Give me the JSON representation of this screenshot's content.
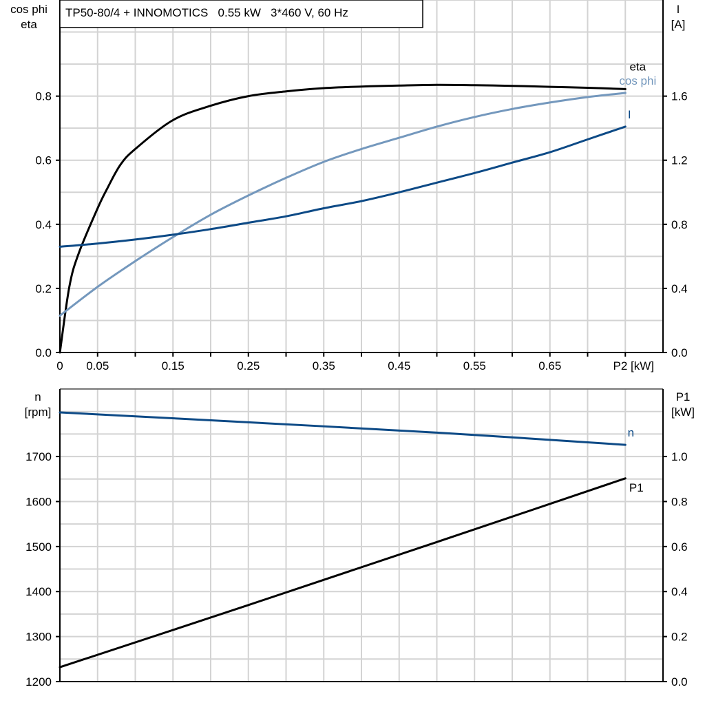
{
  "chart_data": [
    {
      "type": "line",
      "title": "TP50-80/4 + INNOMOTICS   0.55 kW   3*460 V, 60 Hz",
      "xlabel": "P2 [kW]",
      "ylabel_left": [
        "cos phi",
        "eta"
      ],
      "ylabel_right": [
        "I",
        "[A]"
      ],
      "xlim": [
        0,
        0.8
      ],
      "ylim_left": [
        0,
        1.1
      ],
      "ylim_right": [
        0,
        2.2
      ],
      "x_tick_labels": [
        "0",
        "0.05",
        "0.15",
        "0.25",
        "0.35",
        "0.45",
        "0.55",
        "0.65"
      ],
      "x_ticks": [
        0,
        0.05,
        0.15,
        0.25,
        0.35,
        0.45,
        0.55,
        0.65
      ],
      "y_left_ticks": [
        "0.0",
        "0.2",
        "0.4",
        "0.6",
        "0.8"
      ],
      "y_right_ticks": [
        "0.0",
        "0.4",
        "0.8",
        "1.2",
        "1.6"
      ],
      "grid": true,
      "series": [
        {
          "name": "eta",
          "axis": "left",
          "color": "#000000",
          "x": [
            0,
            0.0125,
            0.025,
            0.05,
            0.0625,
            0.08,
            0.1,
            0.15,
            0.2,
            0.25,
            0.3,
            0.35,
            0.4,
            0.45,
            0.5,
            0.55,
            0.6,
            0.65,
            0.7,
            0.75
          ],
          "y": [
            0,
            0.205,
            0.31,
            0.45,
            0.51,
            0.585,
            0.635,
            0.725,
            0.77,
            0.8,
            0.815,
            0.825,
            0.83,
            0.833,
            0.835,
            0.834,
            0.832,
            0.829,
            0.826,
            0.822
          ]
        },
        {
          "name": "cos phi",
          "axis": "left",
          "color": "#7498bd",
          "x": [
            0,
            0.05,
            0.1,
            0.15,
            0.2,
            0.25,
            0.3,
            0.35,
            0.4,
            0.45,
            0.5,
            0.55,
            0.6,
            0.65,
            0.7,
            0.75
          ],
          "y": [
            0.115,
            0.205,
            0.285,
            0.36,
            0.43,
            0.49,
            0.545,
            0.595,
            0.635,
            0.67,
            0.705,
            0.735,
            0.76,
            0.78,
            0.797,
            0.81
          ]
        },
        {
          "name": "I",
          "axis": "right",
          "color": "#0d4a86",
          "x": [
            0,
            0.05,
            0.1,
            0.15,
            0.2,
            0.25,
            0.3,
            0.35,
            0.4,
            0.45,
            0.5,
            0.55,
            0.6,
            0.65,
            0.7,
            0.75
          ],
          "y": [
            0.66,
            0.68,
            0.705,
            0.735,
            0.77,
            0.81,
            0.85,
            0.9,
            0.945,
            1.0,
            1.06,
            1.12,
            1.185,
            1.25,
            1.33,
            1.41
          ]
        }
      ]
    },
    {
      "type": "line",
      "ylabel_left": [
        "n",
        "[rpm]"
      ],
      "ylabel_right": [
        "P1",
        "[kW]"
      ],
      "xlim": [
        0,
        0.8
      ],
      "ylim_left": [
        1200,
        1850
      ],
      "ylim_right": [
        0,
        1.3
      ],
      "y_left_ticks": [
        "1200",
        "1300",
        "1400",
        "1500",
        "1600",
        "1700"
      ],
      "y_right_ticks": [
        "0.0",
        "0.2",
        "0.4",
        "0.6",
        "0.8",
        "1.0"
      ],
      "grid": true,
      "series": [
        {
          "name": "n",
          "axis": "left",
          "color": "#0d4a86",
          "x": [
            0,
            0.25,
            0.5,
            0.75
          ],
          "y": [
            1798,
            1776,
            1753,
            1726
          ]
        },
        {
          "name": "P1",
          "axis": "right",
          "color": "#000000",
          "x": [
            0,
            0.25,
            0.5,
            0.75
          ],
          "y": [
            0.064,
            0.34,
            0.62,
            0.903
          ]
        }
      ]
    }
  ]
}
